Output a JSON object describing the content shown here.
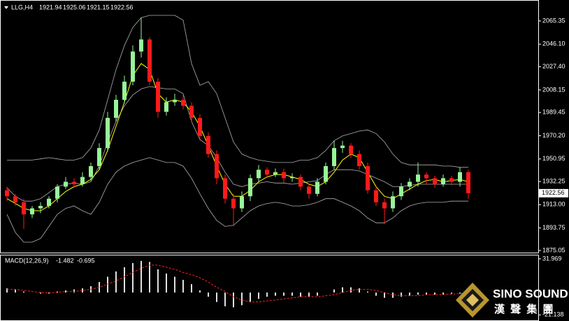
{
  "chart_data": [
    {
      "type": "candlestick",
      "title": "LLG,H4",
      "header_values": [
        1921.94,
        1925.06,
        1921.15,
        1922.56
      ],
      "open": [
        1925,
        1920,
        1915,
        1905,
        1910,
        1912,
        1918,
        1928,
        1932,
        1930,
        1936,
        1945,
        1960,
        1985,
        2000,
        2015,
        2040,
        2050,
        2015,
        1990,
        1998,
        2000,
        1995,
        1985,
        1970,
        1955,
        1935,
        1918,
        1910,
        1920,
        1935,
        1942,
        1938,
        1940,
        1935,
        1936,
        1928,
        1922,
        1932,
        1945,
        1960,
        1962,
        1955,
        1945,
        1925,
        1915,
        1910,
        1920,
        1928,
        1932,
        1938,
        1935,
        1930,
        1935,
        1932,
        1940
      ],
      "high": [
        1928,
        1922,
        1918,
        1912,
        1915,
        1920,
        1930,
        1936,
        1935,
        1940,
        1948,
        1964,
        1990,
        2004,
        2020,
        2045,
        2068,
        2052,
        2018,
        2002,
        2005,
        2004,
        1998,
        1988,
        1973,
        1958,
        1938,
        1922,
        1924,
        1938,
        1946,
        1944,
        1943,
        1943,
        1939,
        1938,
        1930,
        1935,
        1948,
        1966,
        1966,
        1964,
        1958,
        1948,
        1928,
        1918,
        1924,
        1931,
        1935,
        1948,
        1940,
        1937,
        1938,
        1937,
        1944,
        1942
      ],
      "low": [
        1916,
        1912,
        1893,
        1902,
        1906,
        1910,
        1915,
        1926,
        1927,
        1928,
        1933,
        1942,
        1957,
        1982,
        1997,
        2012,
        2035,
        2012,
        1985,
        1987,
        1995,
        1992,
        1982,
        1966,
        1952,
        1930,
        1914,
        1895,
        1907,
        1916,
        1932,
        1935,
        1936,
        1931,
        1932,
        1925,
        1918,
        1920,
        1930,
        1942,
        1956,
        1952,
        1942,
        1922,
        1912,
        1897,
        1907,
        1917,
        1925,
        1928,
        1930,
        1927,
        1928,
        1929,
        1928,
        1918
      ],
      "close": [
        1920,
        1915,
        1905,
        1910,
        1912,
        1918,
        1928,
        1932,
        1930,
        1936,
        1945,
        1960,
        1985,
        2000,
        2015,
        2040,
        2050,
        2015,
        1990,
        1998,
        2000,
        1995,
        1985,
        1970,
        1955,
        1935,
        1918,
        1910,
        1920,
        1935,
        1942,
        1938,
        1940,
        1935,
        1936,
        1928,
        1922,
        1932,
        1945,
        1960,
        1962,
        1955,
        1945,
        1925,
        1915,
        1910,
        1920,
        1928,
        1932,
        1938,
        1935,
        1930,
        1935,
        1932,
        1940,
        1922.56
      ],
      "colors": {
        "up": "#98f598",
        "down": "#ff1a1a"
      },
      "lines": [
        {
          "color": "#b0b0b0",
          "values": [
            1950,
            1950,
            1950,
            1950,
            1951,
            1952,
            1951,
            1950,
            1950,
            1952,
            1960,
            1975,
            2000,
            2025,
            2045,
            2060,
            2068,
            2070,
            2070,
            2070,
            2070,
            2066,
            2030,
            2012,
            2015,
            2005,
            1985,
            1965,
            1955,
            1952,
            1950,
            1949,
            1948,
            1948,
            1948,
            1950,
            1950,
            1952,
            1958,
            1966,
            1970,
            1972,
            1974,
            1975,
            1972,
            1965,
            1955,
            1948,
            1946,
            1946,
            1946,
            1946,
            1945,
            1945,
            1944,
            1944
          ]
        },
        {
          "color": "#b0b0b0",
          "values": [
            1927,
            1920,
            1916,
            1916,
            1918,
            1923,
            1928,
            1930,
            1931,
            1930,
            1932,
            1945,
            1965,
            1982,
            1995,
            2004,
            2009,
            2011,
            2010,
            2009,
            2009,
            2005,
            1982,
            1967,
            1962,
            1952,
            1940,
            1930,
            1928,
            1930,
            1931,
            1932,
            1931,
            1931,
            1930,
            1931,
            1932,
            1933,
            1938,
            1942,
            1942,
            1942,
            1941,
            1938,
            1935,
            1932,
            1928,
            1928,
            1929,
            1930,
            1930,
            1930,
            1930,
            1930,
            1930,
            1930
          ]
        },
        {
          "color": "#b0b0b0",
          "values": [
            1905,
            1890,
            1882,
            1882,
            1885,
            1895,
            1905,
            1910,
            1912,
            1908,
            1905,
            1915,
            1930,
            1940,
            1945,
            1948,
            1950,
            1952,
            1950,
            1948,
            1948,
            1945,
            1935,
            1922,
            1910,
            1900,
            1895,
            1896,
            1902,
            1908,
            1912,
            1914,
            1915,
            1914,
            1912,
            1912,
            1913,
            1915,
            1918,
            1918,
            1915,
            1912,
            1908,
            1902,
            1898,
            1898,
            1902,
            1908,
            1912,
            1914,
            1915,
            1915,
            1915,
            1916,
            1916,
            1916
          ]
        },
        {
          "color": "#ffff00",
          "values": [
            1918,
            1914,
            1910,
            1908,
            1908,
            1912,
            1918,
            1924,
            1928,
            1930,
            1934,
            1942,
            1958,
            1978,
            1998,
            2020,
            2030,
            2025,
            2005,
            1998,
            2000,
            1998,
            1990,
            1978,
            1962,
            1945,
            1930,
            1920,
            1920,
            1925,
            1932,
            1936,
            1938,
            1938,
            1936,
            1934,
            1930,
            1928,
            1932,
            1940,
            1950,
            1955,
            1952,
            1940,
            1928,
            1920,
            1918,
            1922,
            1926,
            1930,
            1933,
            1934,
            1932,
            1933,
            1934,
            1932
          ]
        }
      ],
      "ylim": [
        1873.3,
        2082.7
      ],
      "yticks": [
        2065.35,
        {
          "value": 2046.1,
          "label": "2046.10"
        },
        {
          "value": 2027.4,
          "label": "2027.40"
        },
        2008.15,
        1989.45,
        {
          "value": 1970.2,
          "label": "1970.20"
        },
        1950.95,
        1932.25,
        {
          "value": 1913,
          "label": "1913.00"
        },
        1893.75,
        1875.05
      ],
      "last_price": 1922.56
    },
    {
      "type": "macd",
      "title": "MACD(12,26,9)",
      "header_values": [
        -1.482,
        -0.695
      ],
      "histogram": {
        "color": "#e0e0e0",
        "values": [
          4,
          3,
          1,
          0,
          -1,
          -1,
          1,
          2,
          3,
          4,
          6,
          10,
          15,
          20,
          24,
          28,
          30,
          29,
          22,
          18,
          15,
          12,
          8,
          2,
          -4,
          -9,
          -13,
          -14,
          -12,
          -9,
          -6,
          -4,
          -3,
          -3,
          -3,
          -4,
          -4,
          -3,
          0,
          3,
          5,
          5,
          4,
          1,
          -3,
          -5,
          -5,
          -4,
          -3,
          -2,
          -2,
          -2,
          -2,
          -1,
          -1,
          -1.482
        ]
      },
      "signal": {
        "color": "#ff2020",
        "values": [
          3,
          3,
          2,
          1,
          0,
          0,
          0,
          1,
          1,
          2,
          3,
          5,
          8,
          11,
          15,
          19,
          23,
          26,
          26,
          24,
          22,
          19,
          17,
          14,
          10,
          5,
          1,
          -4,
          -7,
          -9,
          -9,
          -8,
          -7,
          -6,
          -5,
          -4,
          -4,
          -4,
          -3,
          -2,
          0,
          2,
          3,
          3,
          2,
          0,
          -2,
          -3,
          -3,
          -3,
          -2,
          -2,
          -2,
          -1.5,
          -1,
          -0.695
        ]
      },
      "ylim": [
        -26.3,
        35.2
      ],
      "yticks": [
        31.969,
        -21.138
      ]
    }
  ],
  "watermark": {
    "brand": "SINO SOUND",
    "chinese": "漢 聲 集 團"
  }
}
